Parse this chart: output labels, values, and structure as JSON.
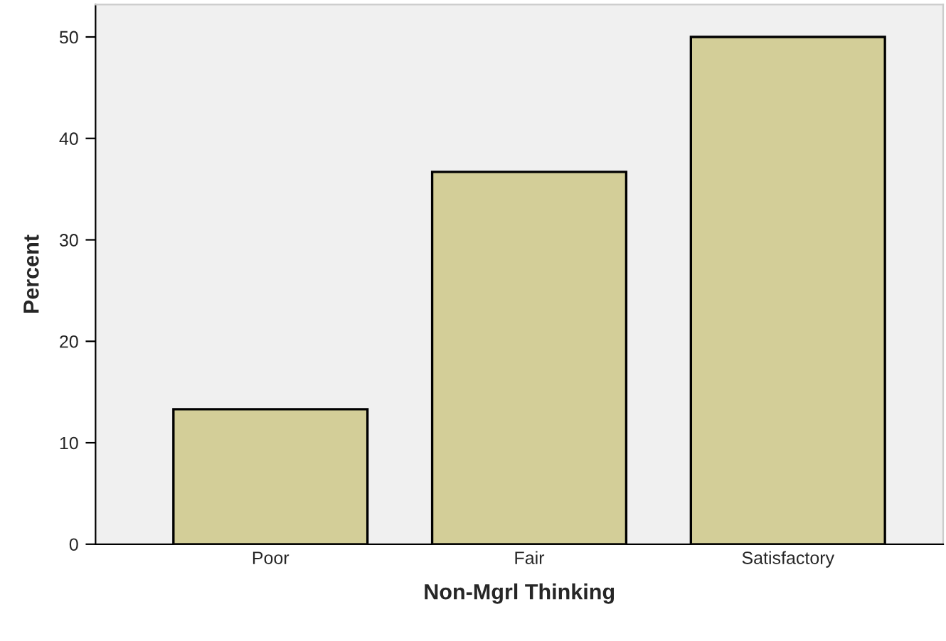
{
  "chart_data": {
    "type": "bar",
    "xlabel": "Non-Mgrl Thinking",
    "ylabel": "Percent",
    "categories": [
      "Poor",
      "Fair",
      "Satisfactory"
    ],
    "values": [
      13.3,
      36.7,
      50.0
    ],
    "color": "#d3ce98",
    "ylim": [
      0,
      53.2
    ],
    "yticks": [
      0,
      10,
      20,
      30,
      40,
      50
    ],
    "grid": false
  }
}
